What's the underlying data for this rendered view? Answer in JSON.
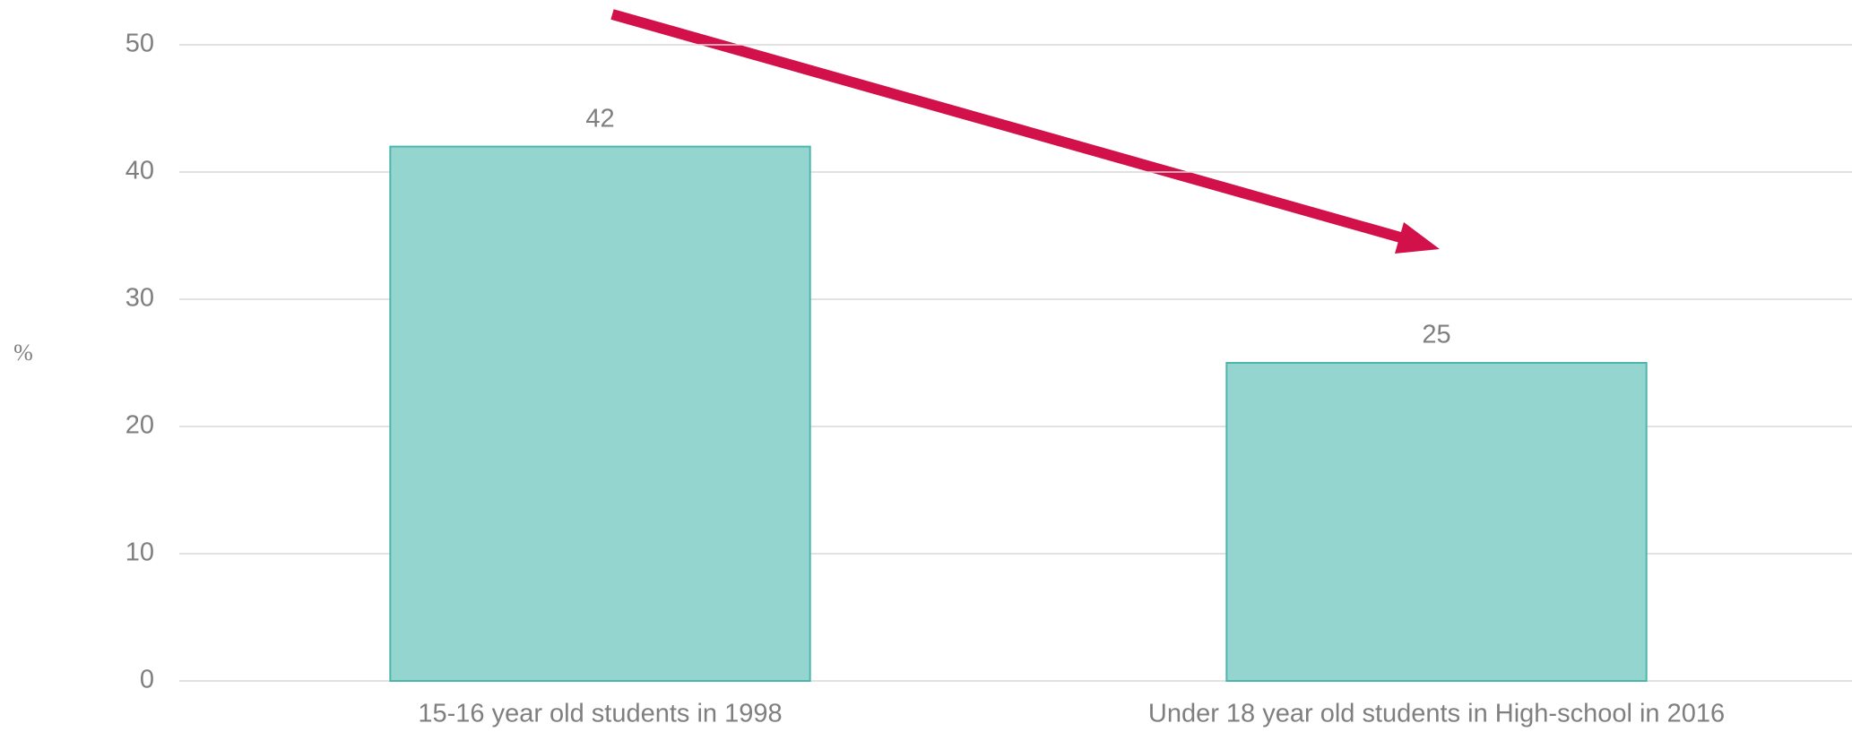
{
  "chart_data": {
    "type": "bar",
    "y_label": "%",
    "categories": [
      "15-16 year old students in 1998",
      "Under 18 year old students in High-school in 2016"
    ],
    "values": [
      42,
      25
    ],
    "color": "#95d5cf",
    "ylim": [
      0,
      50
    ],
    "yticks": [
      0,
      10,
      20,
      30,
      40,
      50
    ],
    "grid": true
  }
}
